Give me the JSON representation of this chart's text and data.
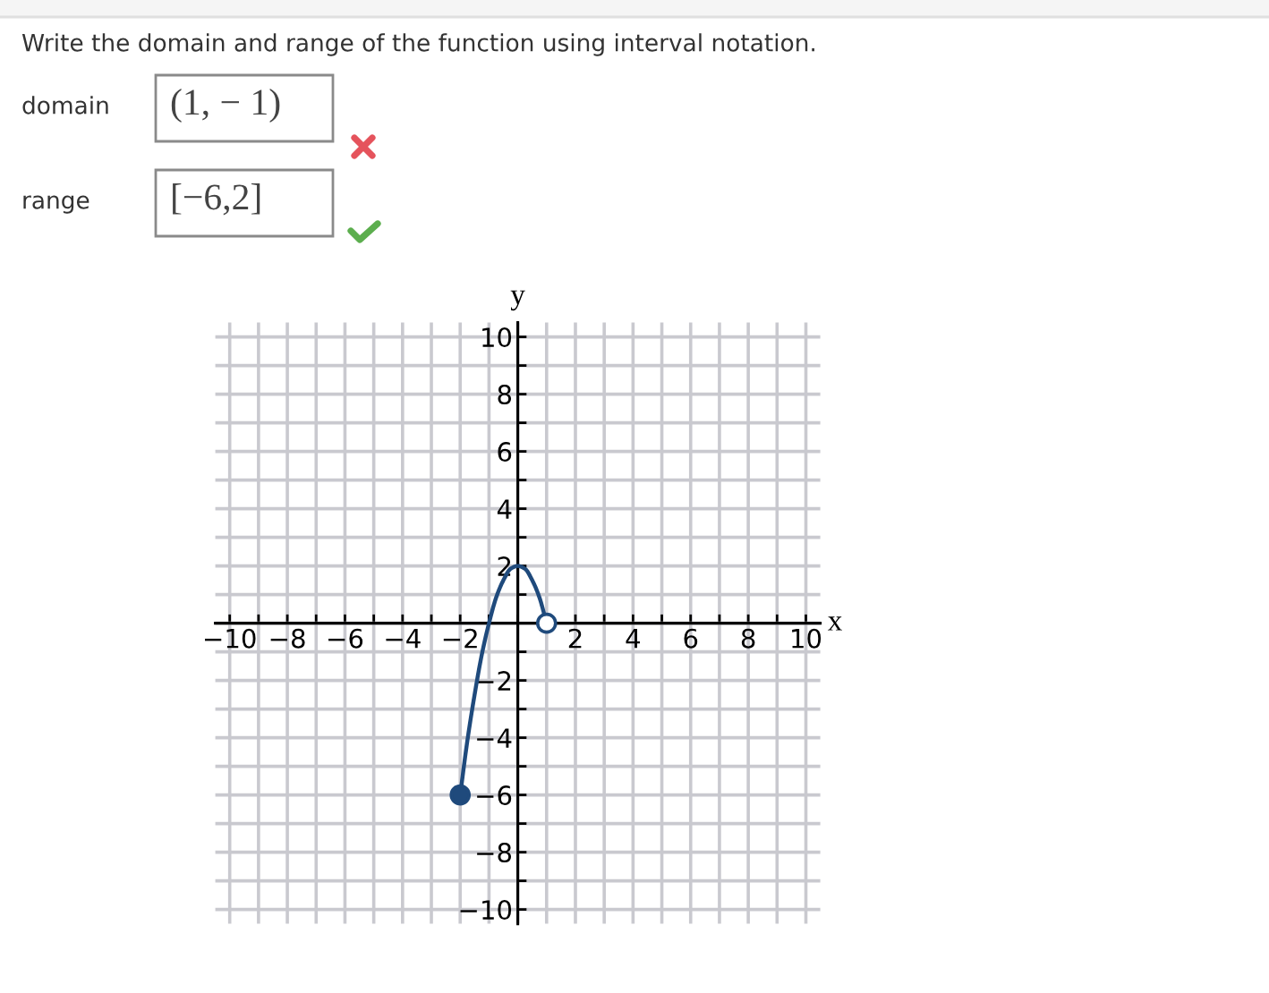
{
  "chart_data": {
    "type": "line",
    "title": "Write the domain and range of the function using interval notation.",
    "xlabel": "x",
    "ylabel": "y",
    "annotations": [
      "domain",
      "(1, − 1)",
      "range",
      "[−6,2]"
    ],
    "series": [
      {
        "color": "#1f4a7c",
        "x": [
          -2,
          -1.75,
          -1.5,
          -1.25,
          -1,
          -0.75,
          -0.5,
          -0.25,
          0,
          0.25,
          0.5,
          0.75,
          1
        ],
        "values": [
          -6,
          -4.1,
          -2.5,
          -1.1,
          0,
          0.9,
          1.5,
          1.9,
          2,
          1.9,
          1.5,
          0.9,
          0
        ]
      },
      {
        "type": "scatter",
        "color": "#1f4a7c",
        "marker": "circle",
        "x": [
          -2
        ],
        "values": [
          -6
        ]
      },
      {
        "type": "scatter",
        "color": "#ffffff",
        "marker": "circle",
        "x": [
          1
        ],
        "values": [
          0
        ]
      }
    ],
    "xlim": [
      -10.5,
      10.5
    ],
    "ylim": [
      -10.5,
      10.5
    ],
    "xticks": [
      {
        "value": -10,
        "label": "−10"
      },
      {
        "value": -9,
        "label": null
      },
      {
        "value": -8,
        "label": "−8"
      },
      {
        "value": -7,
        "label": null
      },
      {
        "value": -6,
        "label": "−6"
      },
      {
        "value": -5,
        "label": null
      },
      {
        "value": -4,
        "label": "−4"
      },
      {
        "value": -3,
        "label": null
      },
      {
        "value": -2,
        "label": "−2"
      },
      {
        "value": -1,
        "label": null
      },
      {
        "value": 0,
        "label": null
      },
      {
        "value": 1,
        "label": null
      },
      2,
      {
        "value": 3,
        "label": null
      },
      4,
      {
        "value": 5,
        "label": null
      },
      6,
      {
        "value": 7,
        "label": null
      },
      8,
      {
        "value": 9,
        "label": null
      },
      10
    ],
    "yticks": [
      {
        "value": -10,
        "label": "−10"
      },
      {
        "value": -9,
        "label": null
      },
      {
        "value": -8,
        "label": "−8"
      },
      {
        "value": -7,
        "label": null
      },
      {
        "value": -6,
        "label": "−6"
      },
      {
        "value": -5,
        "label": null
      },
      {
        "value": -4,
        "label": "−4"
      },
      {
        "value": -3,
        "label": null
      },
      {
        "value": -2,
        "label": "−2"
      },
      {
        "value": -1,
        "label": null
      },
      {
        "value": 0,
        "label": null
      },
      {
        "value": 1,
        "label": null
      },
      2,
      {
        "value": 3,
        "label": null
      },
      4,
      {
        "value": 5,
        "label": null
      },
      6,
      {
        "value": 7,
        "label": null
      },
      8,
      {
        "value": 9,
        "label": null
      },
      10
    ],
    "grid": true
  }
}
